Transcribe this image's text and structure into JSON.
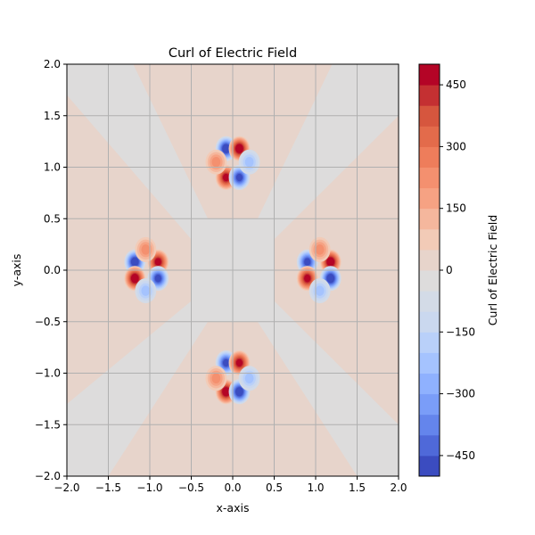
{
  "chart_data": {
    "type": "heatmap",
    "subtype": "filled-contour",
    "title": "Curl of Electric Field",
    "xlabel": "x-axis",
    "ylabel": "y-axis",
    "xlim": [
      -2.0,
      2.0
    ],
    "ylim": [
      -2.0,
      2.0
    ],
    "x_ticks": [
      -2.0,
      -1.5,
      -1.0,
      -0.5,
      0.0,
      0.5,
      1.0,
      1.5,
      2.0
    ],
    "y_ticks": [
      -2.0,
      -1.5,
      -1.0,
      -0.5,
      0.0,
      0.5,
      1.0,
      1.5,
      2.0
    ],
    "x_tick_labels": [
      "−2.0",
      "−1.5",
      "−1.0",
      "−0.5",
      "0.0",
      "0.5",
      "1.0",
      "1.5",
      "2.0"
    ],
    "y_tick_labels": [
      "−2.0",
      "−1.5",
      "−1.0",
      "−0.5",
      "0.0",
      "0.5",
      "1.0",
      "1.5",
      "2.0"
    ],
    "grid": true,
    "colormap": "coolwarm",
    "colorbar": {
      "label": "Curl of Electric Field",
      "range": [
        -500,
        500
      ],
      "ticks": [
        -450,
        -300,
        -150,
        0,
        150,
        300,
        450
      ],
      "tick_labels": [
        "−450",
        "−300",
        "−150",
        "0",
        "150",
        "300",
        "450"
      ],
      "levels": [
        -500,
        -450,
        -400,
        -350,
        -300,
        -250,
        -200,
        -150,
        -100,
        -50,
        0,
        50,
        100,
        150,
        200,
        250,
        300,
        350,
        400,
        450,
        500
      ],
      "colors": [
        "#3b4cc0",
        "#4f69d9",
        "#6485ec",
        "#7a9df8",
        "#8fb1fe",
        "#a5c3fe",
        "#b9d0f9",
        "#cad8ef",
        "#d3dbe7",
        "#dddcdc",
        "#e7d4cb",
        "#f2cbb7",
        "#f5b79d",
        "#f6a283",
        "#f4906f",
        "#ee7d5b",
        "#e36b4b",
        "#d6563e",
        "#c43032",
        "#b40426"
      ]
    },
    "background": {
      "cross_region_value": -25,
      "side_region_value": 25
    },
    "features": [
      {
        "name": "top-dipole",
        "center": [
          0.0,
          1.0
        ],
        "peaks": [
          {
            "x": -0.08,
            "y": 1.18,
            "value": -500
          },
          {
            "x": 0.08,
            "y": 1.18,
            "value": 500
          },
          {
            "x": -0.08,
            "y": 0.9,
            "value": 480
          },
          {
            "x": 0.08,
            "y": 0.9,
            "value": -480
          },
          {
            "x": -0.2,
            "y": 1.05,
            "value": 200
          },
          {
            "x": 0.2,
            "y": 1.05,
            "value": -200
          }
        ]
      },
      {
        "name": "bottom-dipole",
        "center": [
          0.0,
          -1.0
        ],
        "peaks": [
          {
            "x": -0.08,
            "y": -0.9,
            "value": -480
          },
          {
            "x": 0.08,
            "y": -0.9,
            "value": 480
          },
          {
            "x": -0.08,
            "y": -1.18,
            "value": 500
          },
          {
            "x": 0.08,
            "y": -1.18,
            "value": -500
          },
          {
            "x": -0.2,
            "y": -1.05,
            "value": 200
          },
          {
            "x": 0.2,
            "y": -1.05,
            "value": -200
          }
        ]
      },
      {
        "name": "left-dipole",
        "center": [
          -1.0,
          0.0
        ],
        "peaks": [
          {
            "x": -1.18,
            "y": 0.08,
            "value": -500
          },
          {
            "x": -0.9,
            "y": 0.08,
            "value": 480
          },
          {
            "x": -1.18,
            "y": -0.08,
            "value": 500
          },
          {
            "x": -0.9,
            "y": -0.08,
            "value": -480
          },
          {
            "x": -1.05,
            "y": 0.2,
            "value": 200
          },
          {
            "x": -1.05,
            "y": -0.2,
            "value": -200
          }
        ]
      },
      {
        "name": "right-dipole",
        "center": [
          1.0,
          0.0
        ],
        "peaks": [
          {
            "x": 1.18,
            "y": 0.08,
            "value": 500
          },
          {
            "x": 0.9,
            "y": 0.08,
            "value": -480
          },
          {
            "x": 1.18,
            "y": -0.08,
            "value": -500
          },
          {
            "x": 0.9,
            "y": -0.08,
            "value": 480
          },
          {
            "x": 1.05,
            "y": 0.2,
            "value": 200
          },
          {
            "x": 1.05,
            "y": -0.2,
            "value": -200
          }
        ]
      }
    ]
  }
}
